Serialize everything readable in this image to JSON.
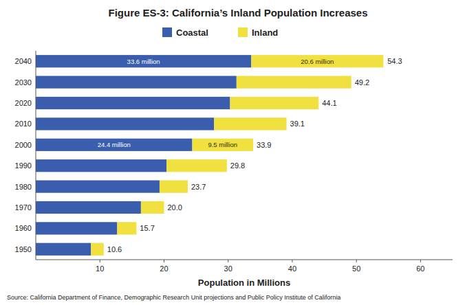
{
  "chart_data": {
    "type": "bar",
    "orientation": "horizontal",
    "stacked": true,
    "title": "Figure ES-3: California’s Inland Population Increases",
    "xlabel": "Population in Millions",
    "source": "Source: California Department of Finance, Demographic Research Unit projections and Public Policy Institute of California",
    "categories": [
      "1950",
      "1960",
      "1970",
      "1980",
      "1990",
      "2000",
      "2010",
      "2020",
      "2030",
      "2040"
    ],
    "series": [
      {
        "name": "Coastal",
        "color": "#3A5DAE",
        "values": [
          8.6,
          12.7,
          16.4,
          19.3,
          20.4,
          24.4,
          27.8,
          30.3,
          31.3,
          33.6
        ],
        "value_labels": [
          null,
          null,
          null,
          null,
          null,
          "24.4 million",
          null,
          null,
          null,
          "33.6 million"
        ]
      },
      {
        "name": "Inland",
        "color": "#F0E040",
        "values": [
          2.0,
          3.0,
          3.6,
          4.4,
          9.4,
          9.5,
          11.3,
          13.8,
          17.9,
          20.6
        ],
        "value_labels": [
          null,
          null,
          null,
          null,
          null,
          "9.5 million",
          null,
          null,
          null,
          "20.6 million"
        ]
      }
    ],
    "totals": [
      10.6,
      15.7,
      20.0,
      23.7,
      29.8,
      33.9,
      39.1,
      44.1,
      49.2,
      54.3
    ],
    "total_labels": [
      "10.6",
      "15.7",
      "20.0",
      "23.7",
      "29.8",
      "33.9",
      "39.1",
      "44.1",
      "49.2",
      "54.3"
    ],
    "xlim": [
      0,
      65
    ],
    "xticks": [
      10,
      20,
      30,
      40,
      50,
      60
    ],
    "grid": false,
    "legend": "top"
  }
}
